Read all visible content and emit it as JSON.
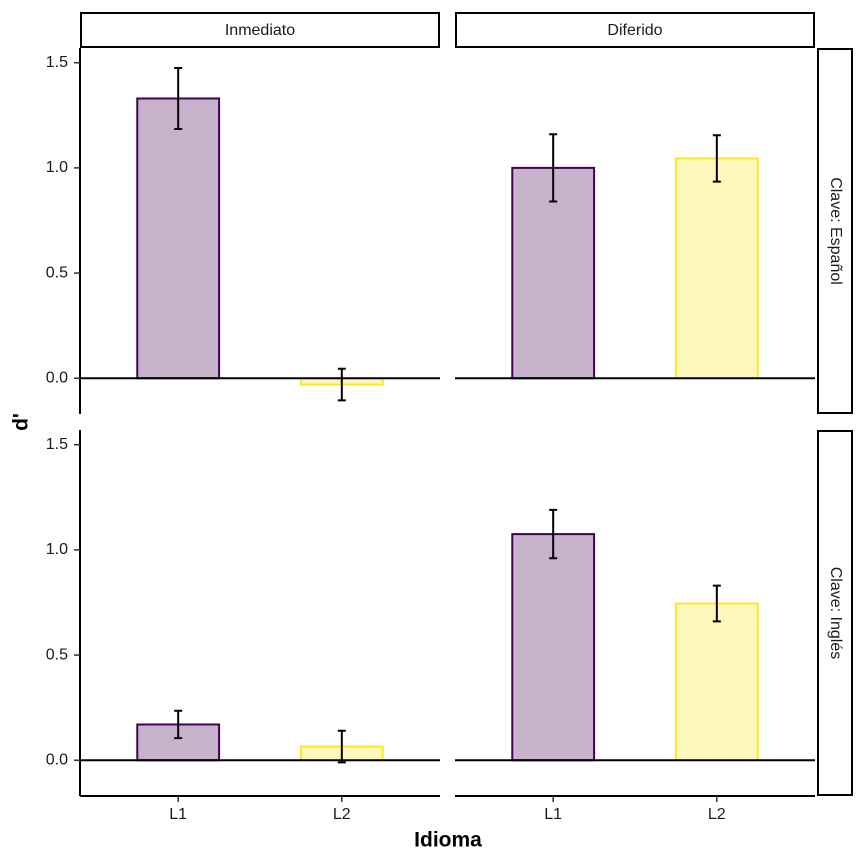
{
  "chart_data": {
    "type": "bar",
    "x_label": "Idioma",
    "y_label": "d'",
    "columns": [
      "Inmediato",
      "Diferido"
    ],
    "rows": [
      "Clave: Español",
      "Clave: Inglés"
    ],
    "categories": [
      "L1",
      "L2"
    ],
    "colors": [
      "#440154",
      "#fde725"
    ],
    "fill_opacity": 0.3,
    "ylim": [
      -0.17,
      1.57
    ],
    "yticks": [
      {
        "value": 0,
        "label": "0.0"
      },
      {
        "value": 0.5,
        "label": "0.5"
      },
      {
        "value": 1,
        "label": "1.0"
      },
      {
        "value": 1.5,
        "label": "1.5"
      }
    ],
    "panels": [
      {
        "values": [
          1.33,
          -0.03
        ],
        "errors": [
          0.145,
          0.075
        ]
      },
      {
        "values": [
          1.0,
          1.045
        ],
        "errors": [
          0.16,
          0.11
        ]
      },
      {
        "values": [
          0.17,
          0.065
        ],
        "errors": [
          0.065,
          0.075
        ]
      },
      {
        "values": [
          1.075,
          0.745
        ],
        "errors": [
          0.115,
          0.085
        ]
      }
    ]
  }
}
